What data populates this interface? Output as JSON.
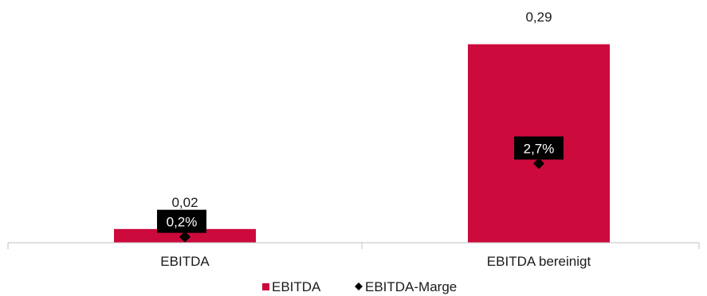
{
  "chart_data": {
    "type": "bar",
    "categories": [
      "EBITDA",
      "EBITDA bereinigt"
    ],
    "series": [
      {
        "name": "EBITDA",
        "kind": "bar",
        "color": "#cc0a3c",
        "values": [
          0.02,
          0.29
        ],
        "labels": [
          "0,02",
          "0,29"
        ]
      },
      {
        "name": "EBITDA-Marge",
        "kind": "marker",
        "marker": "diamond",
        "color": "#000000",
        "values": [
          0.2,
          2.7
        ],
        "labels": [
          "0,2%",
          "2,7%"
        ],
        "ylim": [
          0,
          7.0
        ]
      }
    ],
    "ylim": [
      0,
      0.3
    ],
    "grid": false,
    "legend": "bottom"
  }
}
